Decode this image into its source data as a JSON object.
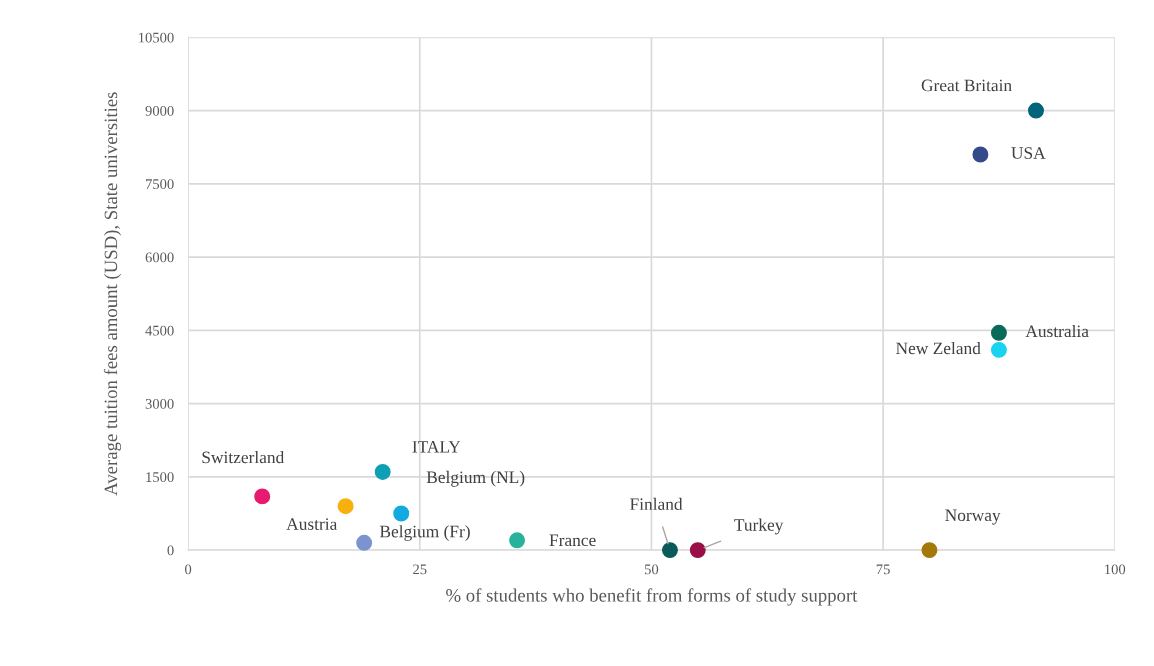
{
  "chart_data": {
    "type": "scatter",
    "xlabel": "% of students who benefit from forms of study support",
    "ylabel": "Average tuition fees amount (USD), State universities",
    "xlim": [
      0,
      100
    ],
    "ylim": [
      0,
      10500
    ],
    "xticks": [
      0,
      25,
      50,
      75,
      100
    ],
    "yticks": [
      0,
      1500,
      3000,
      4500,
      6000,
      7500,
      9000,
      10500
    ],
    "grid": true,
    "marker": "circle",
    "legend": false,
    "series": [
      {
        "name": "Great Britain",
        "color": "#00647a",
        "x": [
          91.5
        ],
        "values": [
          9000
        ]
      },
      {
        "name": "USA",
        "color": "#354a8a",
        "x": [
          85.5
        ],
        "values": [
          8100
        ]
      },
      {
        "name": "Australia",
        "color": "#0a6a5a",
        "x": [
          87.5
        ],
        "values": [
          4450
        ]
      },
      {
        "name": "New Zeland",
        "color": "#19d3f0",
        "x": [
          87.5
        ],
        "values": [
          4100
        ]
      },
      {
        "name": "Switzerland",
        "color": "#e8196f",
        "x": [
          8
        ],
        "values": [
          1100
        ]
      },
      {
        "name": "Austria",
        "color": "#f6b10f",
        "x": [
          17
        ],
        "values": [
          900
        ]
      },
      {
        "name": "Belgium (Fr)",
        "color": "#7b93cf",
        "x": [
          19
        ],
        "values": [
          150
        ]
      },
      {
        "name": "ITALY",
        "color": "#0f9fb4",
        "x": [
          21
        ],
        "values": [
          1600
        ]
      },
      {
        "name": "Belgium (NL)",
        "color": "#12aadf",
        "x": [
          23
        ],
        "values": [
          750
        ]
      },
      {
        "name": "France",
        "color": "#27b39b",
        "x": [
          35.5
        ],
        "values": [
          200
        ]
      },
      {
        "name": "Finland",
        "color": "#0a5a5a",
        "x": [
          52
        ],
        "values": [
          0
        ]
      },
      {
        "name": "Turkey",
        "color": "#9a0f45",
        "x": [
          55
        ],
        "values": [
          0
        ]
      },
      {
        "name": "Norway",
        "color": "#a37a09",
        "x": [
          80
        ],
        "values": [
          0
        ]
      }
    ]
  }
}
